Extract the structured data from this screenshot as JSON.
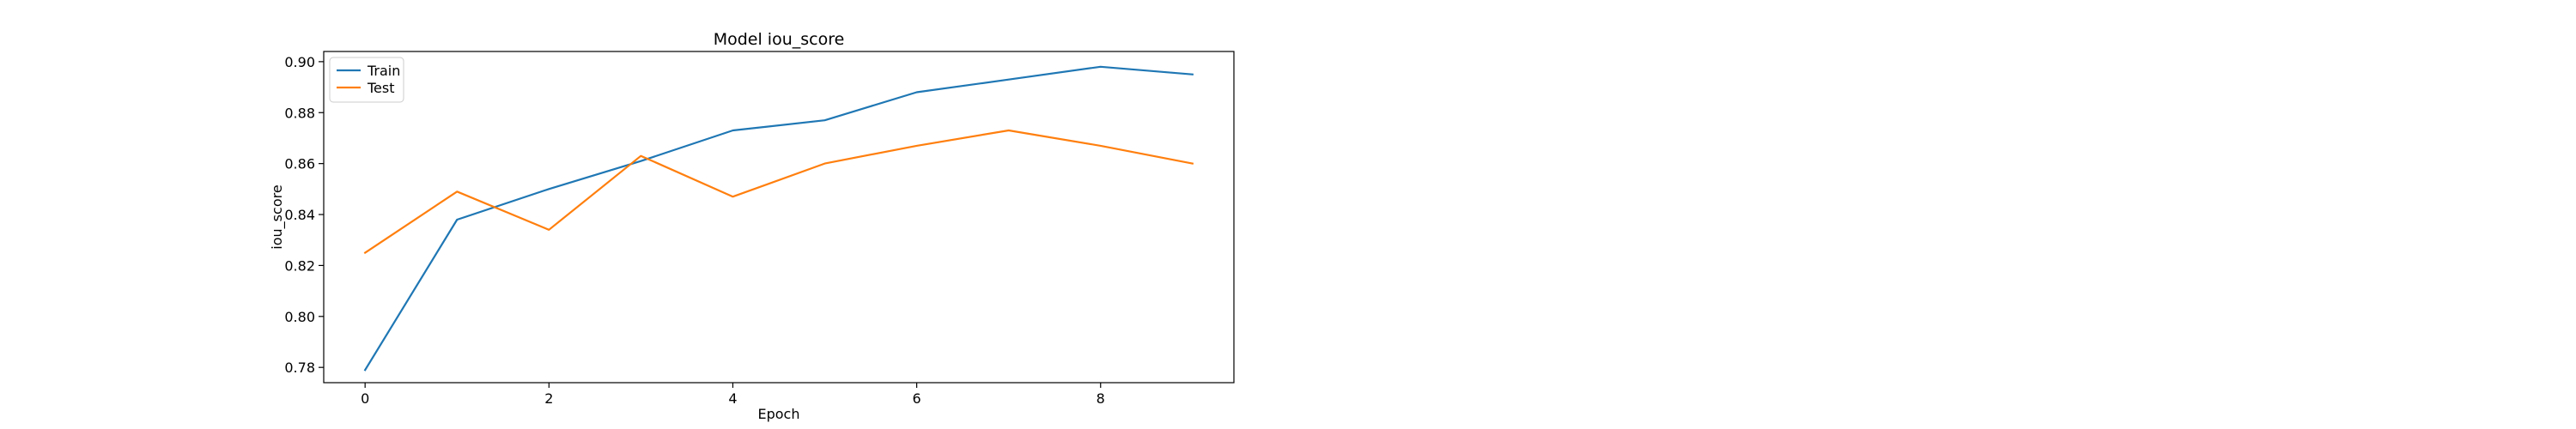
{
  "chart_data": {
    "type": "line",
    "title": "Model iou_score",
    "xlabel": "Epoch",
    "ylabel": "iou_score",
    "x": [
      0,
      1,
      2,
      3,
      4,
      5,
      6,
      7,
      8,
      9
    ],
    "xlim": [
      -0.45,
      9.45
    ],
    "ylim": [
      0.774,
      0.904
    ],
    "xticks": [
      0,
      2,
      4,
      6,
      8
    ],
    "xtick_labels": [
      "0",
      "2",
      "4",
      "6",
      "8"
    ],
    "yticks": [
      0.78,
      0.8,
      0.82,
      0.84,
      0.86,
      0.88,
      0.9
    ],
    "ytick_labels": [
      "0.78",
      "0.80",
      "0.82",
      "0.84",
      "0.86",
      "0.88",
      "0.90"
    ],
    "grid": false,
    "legend_position": "upper-left",
    "series": [
      {
        "name": "Train",
        "color": "#1f77b4",
        "values": [
          0.779,
          0.838,
          0.85,
          0.861,
          0.873,
          0.877,
          0.888,
          0.893,
          0.898,
          0.895
        ]
      },
      {
        "name": "Test",
        "color": "#ff7f0e",
        "values": [
          0.825,
          0.849,
          0.834,
          0.863,
          0.847,
          0.86,
          0.867,
          0.873,
          0.867,
          0.86
        ]
      }
    ]
  }
}
